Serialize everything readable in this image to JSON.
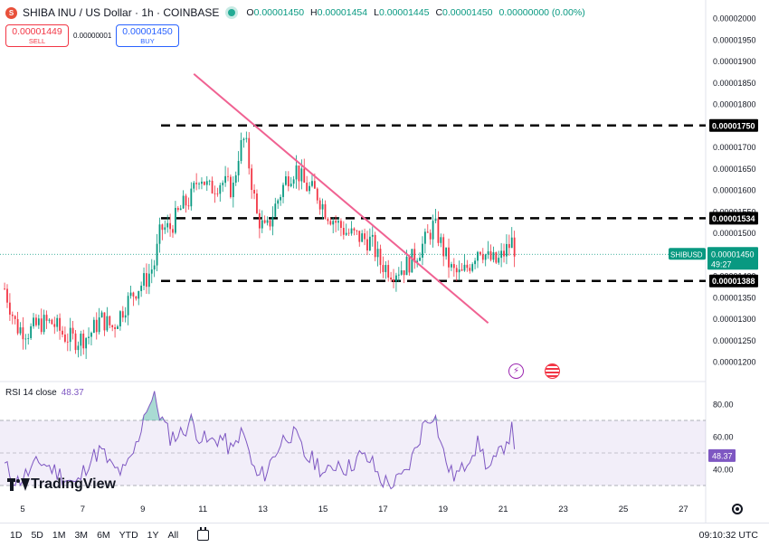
{
  "header": {
    "symbol_icon": "shiba-coin-icon",
    "title": "SHIBA INU / US Dollar · 1h · COINBASE",
    "ohlc": {
      "o_label": "O",
      "o": "0.00001450",
      "h_label": "H",
      "h": "0.00001454",
      "l_label": "L",
      "l": "0.00001445",
      "c_label": "C",
      "c": "0.00001450",
      "change": "0.00000000 (0.00%)"
    },
    "colors": {
      "up": "#089981",
      "down": "#f23645",
      "accent": "#2962ff"
    }
  },
  "trade": {
    "sell_price": "0.00001449",
    "sell_label": "SELL",
    "spread": "0.00000001",
    "buy_price": "0.00001450",
    "buy_label": "BUY"
  },
  "rsi": {
    "label": "RSI 14 close",
    "value": "48.37",
    "ticks": [
      "80.00",
      "60.00",
      "40.00"
    ],
    "current_label": "48.37",
    "color": "#7e57c2"
  },
  "price_axis": {
    "ticks": [
      "0.00002000",
      "0.00001950",
      "0.00001900",
      "0.00001850",
      "0.00001800",
      "0.00001700",
      "0.00001650",
      "0.00001600",
      "0.00001550",
      "0.00001500",
      "0.00001400",
      "0.00001350",
      "0.00001300",
      "0.00001250",
      "0.00001200"
    ],
    "highlight_labels": [
      "0.00001750",
      "0.00001534",
      "0.00001388"
    ],
    "current": {
      "symbol": "SHIBUSD",
      "price": "0.00001450",
      "countdown": "49:27"
    }
  },
  "time_axis": {
    "ticks": [
      "5",
      "7",
      "9",
      "11",
      "13",
      "15",
      "17",
      "19",
      "21",
      "23",
      "25",
      "27"
    ]
  },
  "logo": {
    "text": "TradingView"
  },
  "bottom": {
    "ranges": [
      "1D",
      "5D",
      "1M",
      "3M",
      "6M",
      "YTD",
      "1Y",
      "All"
    ],
    "clock": "09:10:32 UTC"
  },
  "chart_data": {
    "type": "candlestick",
    "timeframe": "1h",
    "ylim": [
      1.18e-05,
      2.02e-05
    ],
    "xlim_days": [
      4.4,
      28
    ],
    "current_price": 1.45e-05,
    "horizontal_levels": [
      1.75e-05,
      1.534e-05,
      1.388e-05
    ],
    "trendline": {
      "from": {
        "day": 10.7,
        "price": 1.87e-05
      },
      "to": {
        "day": 20.5,
        "price": 1.29e-05
      }
    },
    "price_path": [
      [
        4.4,
        1.37e-05
      ],
      [
        4.8,
        1.28e-05
      ],
      [
        5.2,
        1.27e-05
      ],
      [
        5.6,
        1.29e-05
      ],
      [
        6.0,
        1.29e-05
      ],
      [
        6.4,
        1.26e-05
      ],
      [
        6.8,
        1.25e-05
      ],
      [
        7.2,
        1.26e-05
      ],
      [
        7.6,
        1.3e-05
      ],
      [
        8.0,
        1.28e-05
      ],
      [
        8.4,
        1.33e-05
      ],
      [
        8.8,
        1.37e-05
      ],
      [
        9.1,
        1.39e-05
      ],
      [
        9.4,
        1.43e-05
      ],
      [
        9.6,
        1.51e-05
      ],
      [
        9.9,
        1.51e-05
      ],
      [
        10.3,
        1.56e-05
      ],
      [
        10.6,
        1.58e-05
      ],
      [
        10.9,
        1.64e-05
      ],
      [
        11.2,
        1.6e-05
      ],
      [
        11.6,
        1.62e-05
      ],
      [
        12.0,
        1.6e-05
      ],
      [
        12.2,
        1.69e-05
      ],
      [
        12.4,
        1.72e-05
      ],
      [
        12.6,
        1.63e-05
      ],
      [
        12.8,
        1.54e-05
      ],
      [
        13.1,
        1.5e-05
      ],
      [
        13.4,
        1.56e-05
      ],
      [
        13.8,
        1.63e-05
      ],
      [
        14.1,
        1.65e-05
      ],
      [
        14.4,
        1.61e-05
      ],
      [
        14.8,
        1.59e-05
      ],
      [
        15.1,
        1.55e-05
      ],
      [
        15.5,
        1.52e-05
      ],
      [
        15.8,
        1.5e-05
      ],
      [
        16.2,
        1.49e-05
      ],
      [
        16.6,
        1.48e-05
      ],
      [
        16.9,
        1.43e-05
      ],
      [
        17.3,
        1.41e-05
      ],
      [
        17.7,
        1.42e-05
      ],
      [
        18.0,
        1.44e-05
      ],
      [
        18.4,
        1.48e-05
      ],
      [
        18.7,
        1.52e-05
      ],
      [
        19.0,
        1.46e-05
      ],
      [
        19.3,
        1.41e-05
      ],
      [
        19.6,
        1.4e-05
      ],
      [
        19.9,
        1.43e-05
      ],
      [
        20.2,
        1.47e-05
      ],
      [
        20.5,
        1.44e-05
      ],
      [
        20.8,
        1.43e-05
      ],
      [
        21.1,
        1.46e-05
      ],
      [
        21.3,
        1.48e-05
      ],
      [
        21.45,
        1.45e-05
      ]
    ],
    "rsi_path": [
      [
        4.4,
        42
      ],
      [
        4.8,
        32
      ],
      [
        5.2,
        38
      ],
      [
        5.6,
        45
      ],
      [
        6.0,
        40
      ],
      [
        6.4,
        35
      ],
      [
        6.8,
        30
      ],
      [
        7.2,
        45
      ],
      [
        7.6,
        52
      ],
      [
        8.0,
        40
      ],
      [
        8.4,
        38
      ],
      [
        8.8,
        55
      ],
      [
        9.1,
        78
      ],
      [
        9.4,
        84
      ],
      [
        9.6,
        72
      ],
      [
        9.9,
        60
      ],
      [
        10.3,
        62
      ],
      [
        10.6,
        70
      ],
      [
        10.9,
        60
      ],
      [
        11.2,
        56
      ],
      [
        11.6,
        60
      ],
      [
        12.0,
        50
      ],
      [
        12.2,
        62
      ],
      [
        12.4,
        60
      ],
      [
        12.6,
        45
      ],
      [
        12.8,
        35
      ],
      [
        13.1,
        38
      ],
      [
        13.4,
        50
      ],
      [
        13.8,
        62
      ],
      [
        14.1,
        60
      ],
      [
        14.4,
        48
      ],
      [
        14.8,
        44
      ],
      [
        15.1,
        36
      ],
      [
        15.5,
        45
      ],
      [
        15.8,
        40
      ],
      [
        16.2,
        48
      ],
      [
        16.6,
        45
      ],
      [
        16.9,
        34
      ],
      [
        17.3,
        30
      ],
      [
        17.7,
        36
      ],
      [
        18.0,
        48
      ],
      [
        18.4,
        70
      ],
      [
        18.7,
        75
      ],
      [
        19.0,
        50
      ],
      [
        19.3,
        36
      ],
      [
        19.6,
        38
      ],
      [
        19.9,
        50
      ],
      [
        20.2,
        56
      ],
      [
        20.5,
        40
      ],
      [
        20.8,
        46
      ],
      [
        21.1,
        58
      ],
      [
        21.3,
        64
      ],
      [
        21.45,
        48
      ]
    ],
    "rsi_ylim": [
      27,
      92
    ],
    "rsi_band": [
      30,
      70
    ]
  }
}
